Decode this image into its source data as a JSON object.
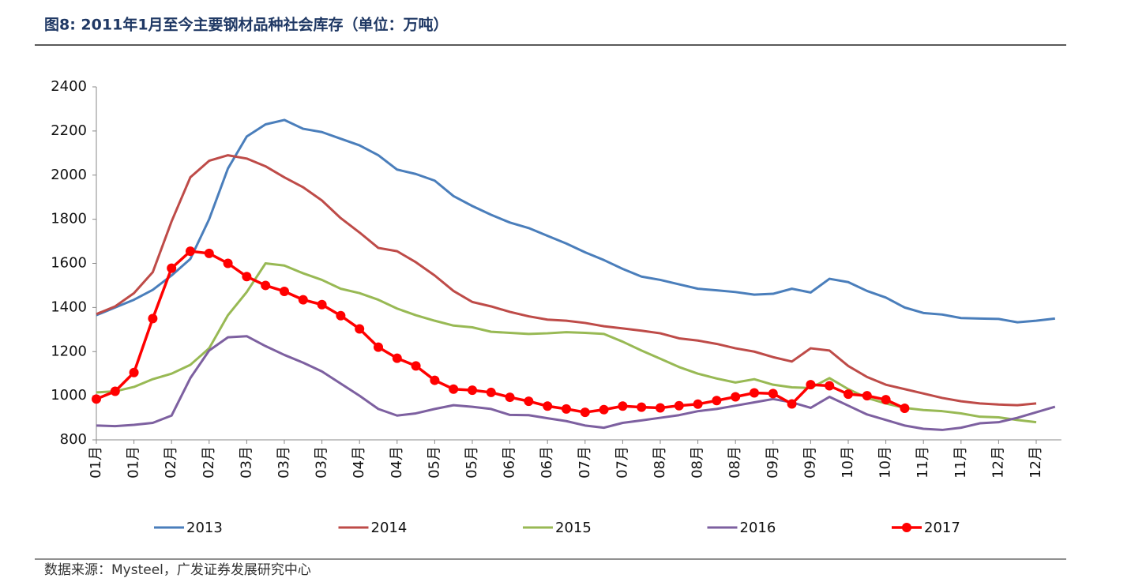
{
  "chart_data": {
    "type": "line",
    "title": "图8: 2011年1月至今主要钢材品种社会库存（单位：万吨）",
    "source": "数据来源：Mysteel，广发证券发展研究中心",
    "categories": [
      "01月",
      null,
      "01月",
      null,
      "02月",
      null,
      "02月",
      null,
      "03月",
      null,
      "03月",
      null,
      "03月",
      null,
      "04月",
      null,
      "04月",
      null,
      "05月",
      null,
      "05月",
      null,
      "06月",
      null,
      "06月",
      null,
      "07月",
      null,
      "07月",
      null,
      "08月",
      null,
      "08月",
      null,
      "08月",
      null,
      "09月",
      null,
      "09月",
      null,
      "10月",
      null,
      "10月",
      null,
      "11月",
      null,
      "11月",
      null,
      "12月",
      null,
      "12月",
      null
    ],
    "ylim": [
      800,
      2400
    ],
    "yticks": [
      800,
      1000,
      1200,
      1400,
      1600,
      1800,
      2000,
      2200,
      2400
    ],
    "legend": "bottom",
    "series": [
      {
        "name": "2013",
        "color": "#4a7ebb",
        "markers": false,
        "values": [
          1365,
          1400,
          1435,
          1480,
          1545,
          1620,
          1800,
          2030,
          2175,
          2230,
          2250,
          2210,
          2195,
          2165,
          2135,
          2090,
          2025,
          2005,
          1975,
          1905,
          1860,
          1820,
          1785,
          1760,
          1725,
          1690,
          1650,
          1615,
          1575,
          1540,
          1525,
          1505,
          1485,
          1478,
          1470,
          1458,
          1462,
          1485,
          1468,
          1530,
          1515,
          1475,
          1445,
          1400,
          1375,
          1368,
          1352,
          1350,
          1348,
          1333,
          1340,
          1350
        ]
      },
      {
        "name": "2014",
        "color": "#be4b48",
        "markers": false,
        "values": [
          1370,
          1405,
          1465,
          1560,
          1790,
          1990,
          2065,
          2090,
          2075,
          2040,
          1990,
          1945,
          1885,
          1805,
          1740,
          1670,
          1655,
          1605,
          1545,
          1475,
          1425,
          1405,
          1380,
          1360,
          1345,
          1340,
          1330,
          1315,
          1305,
          1295,
          1283,
          1260,
          1250,
          1235,
          1215,
          1200,
          1175,
          1155,
          1215,
          1205,
          1135,
          1085,
          1050,
          1030,
          1010,
          990,
          975,
          965,
          960,
          957,
          965,
          null
        ]
      },
      {
        "name": "2015",
        "color": "#98b954",
        "markers": false,
        "values": [
          1015,
          1020,
          1040,
          1075,
          1100,
          1140,
          1215,
          1365,
          1470,
          1600,
          1590,
          1555,
          1525,
          1485,
          1465,
          1435,
          1395,
          1365,
          1340,
          1318,
          1310,
          1290,
          1285,
          1280,
          1283,
          1288,
          1285,
          1280,
          1245,
          1205,
          1168,
          1130,
          1100,
          1078,
          1060,
          1075,
          1050,
          1038,
          1035,
          1080,
          1030,
          990,
          965,
          945,
          935,
          930,
          920,
          905,
          902,
          890,
          880,
          null
        ]
      },
      {
        "name": "2016",
        "color": "#7d60a0",
        "markers": false,
        "values": [
          865,
          862,
          868,
          877,
          910,
          1080,
          1205,
          1265,
          1270,
          1225,
          1185,
          1150,
          1110,
          1055,
          1000,
          940,
          910,
          920,
          940,
          957,
          950,
          940,
          913,
          912,
          898,
          885,
          865,
          855,
          877,
          888,
          900,
          912,
          930,
          940,
          955,
          970,
          985,
          970,
          945,
          995,
          955,
          915,
          890,
          865,
          850,
          845,
          855,
          875,
          880,
          900,
          925,
          950
        ]
      },
      {
        "name": "2017",
        "color": "#ff0000",
        "markers": true,
        "values": [
          985,
          1020,
          1105,
          1350,
          1578,
          1655,
          1645,
          1600,
          1540,
          1500,
          1473,
          1435,
          1413,
          1363,
          1303,
          1220,
          1170,
          1135,
          1070,
          1030,
          1025,
          1015,
          993,
          975,
          953,
          940,
          925,
          937,
          953,
          948,
          945,
          955,
          962,
          978,
          995,
          1013,
          1010,
          963,
          1050,
          1045,
          1007,
          1000,
          982,
          943,
          null,
          null,
          null,
          null,
          null,
          null,
          null,
          null
        ]
      }
    ]
  }
}
